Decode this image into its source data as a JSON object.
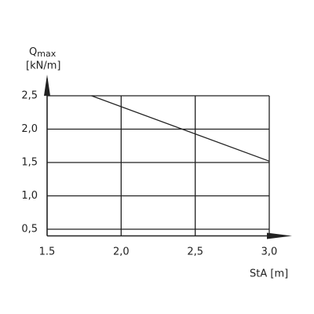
{
  "chart_data": {
    "type": "line",
    "y_label": "Q",
    "y_label_sub": "max",
    "y_unit": "[kN/m]",
    "x_label": "StA [m]",
    "x": [
      1.8,
      3.0
    ],
    "series": [
      {
        "color": "#222222",
        "values": [
          2.5,
          1.52
        ]
      }
    ],
    "xlim": [
      1.5,
      3.0
    ],
    "ylim": [
      0.4,
      2.5
    ],
    "xticks": [
      {
        "value": 1.5,
        "label": "1.5"
      },
      {
        "value": 2.0,
        "label": "2,0"
      },
      {
        "value": 2.5,
        "label": "2,5"
      },
      {
        "value": 3.0,
        "label": "3,0"
      }
    ],
    "yticks": [
      {
        "value": 0.5,
        "label": "0,5"
      },
      {
        "value": 1.0,
        "label": "1,0"
      },
      {
        "value": 1.5,
        "label": "1,5"
      },
      {
        "value": 2.0,
        "label": "2,0"
      },
      {
        "value": 2.5,
        "label": "2,5"
      }
    ],
    "grid": true
  }
}
